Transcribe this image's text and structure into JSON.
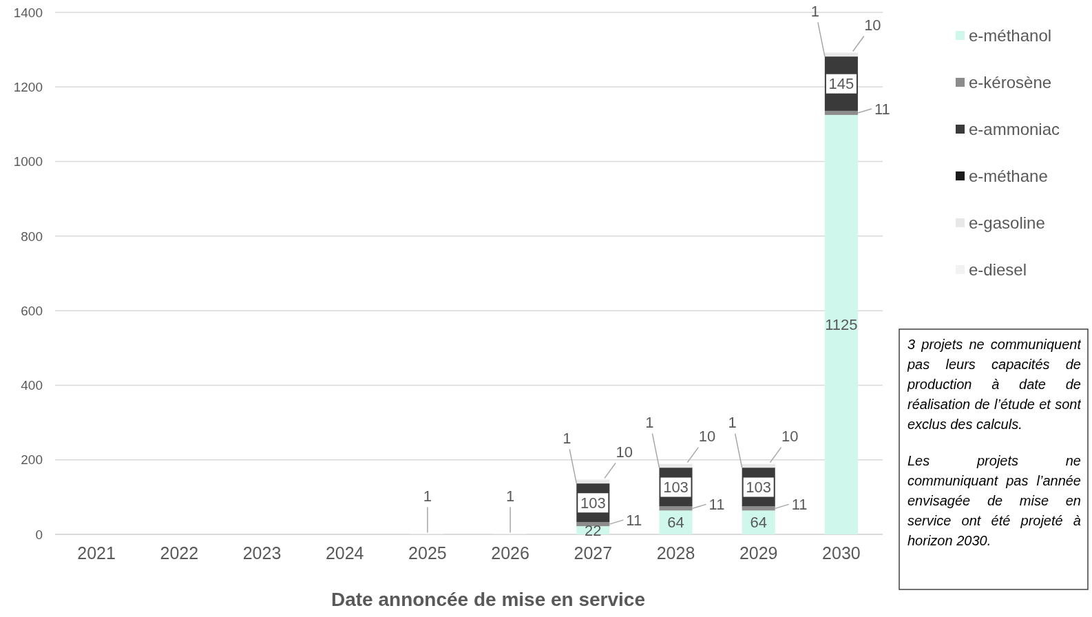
{
  "chart_data": {
    "type": "bar",
    "stacked": true,
    "xlabel": "Date annoncée de mise en service",
    "categories": [
      "2021",
      "2022",
      "2023",
      "2024",
      "2025",
      "2026",
      "2027",
      "2028",
      "2029",
      "2030"
    ],
    "series": [
      {
        "name": "e-méthanol",
        "color": "#cff7ec",
        "values": [
          null,
          null,
          null,
          null,
          null,
          null,
          22,
          64,
          64,
          1125
        ]
      },
      {
        "name": "e-kérosène",
        "color": "#8c8c8c",
        "values": [
          null,
          null,
          null,
          null,
          null,
          null,
          11,
          11,
          11,
          11
        ]
      },
      {
        "name": "e-ammoniac",
        "color": "#3a3a3a",
        "values": [
          null,
          null,
          null,
          null,
          null,
          null,
          103,
          103,
          103,
          145
        ]
      },
      {
        "name": "e-méthane",
        "color": "#1a1a1a",
        "values": [
          null,
          null,
          null,
          null,
          null,
          null,
          1,
          1,
          1,
          1
        ]
      },
      {
        "name": "e-gasoline",
        "color": "#e8e8e8",
        "values": [
          null,
          null,
          null,
          null,
          null,
          null,
          10,
          10,
          10,
          10
        ]
      },
      {
        "name": "e-diesel",
        "color": "#f2f2f2",
        "values": [
          null,
          null,
          null,
          null,
          1,
          1,
          null,
          null,
          null,
          null
        ]
      }
    ],
    "ylim": [
      0,
      1400
    ],
    "yticks": [
      0,
      200,
      400,
      600,
      800,
      1000,
      1200,
      1400
    ],
    "grid": "y",
    "legend": "right",
    "data_labels": true,
    "annotations": [
      "3 projets ne communiquent pas leurs capacités de production à date de réalisation de l’étude et sont exclus des calculs.",
      "Les projets ne communiquant pas l’année envisagée de mise en service ont été projeté à horizon 2030."
    ]
  }
}
